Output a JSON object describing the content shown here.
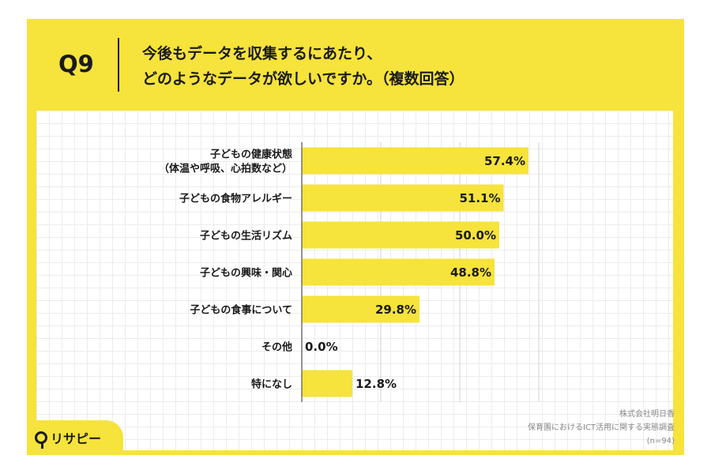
{
  "header": {
    "question": "Q9",
    "title_line1": "今後もデータを収集するにあたり、",
    "title_line2": "どのようなデータが欲しいですか。（複数回答）"
  },
  "chart_data": {
    "type": "bar",
    "orientation": "horizontal",
    "categories": [
      [
        "子どもの健康状態",
        "（体温や呼吸、心拍数など）"
      ],
      [
        "子どもの食物アレルギー"
      ],
      [
        "子どもの生活リズム"
      ],
      [
        "子どもの興味・関心"
      ],
      [
        "子どもの食事について"
      ],
      [
        "その他"
      ],
      [
        "特になし"
      ]
    ],
    "values": [
      57.4,
      51.1,
      50.0,
      48.8,
      29.8,
      0.0,
      12.8
    ],
    "value_labels": [
      "57.4%",
      "51.1%",
      "50.0%",
      "48.8%",
      "29.8%",
      "0.0%",
      "12.8%"
    ],
    "xlim": [
      0,
      100
    ],
    "grid": true,
    "bar_color": "#f6e33b"
  },
  "footer": {
    "company": "株式会社明日香",
    "survey": "保育園におけるICT活用に関する実態調査",
    "n": "(n=94)"
  },
  "logo": {
    "text": "リサピー"
  },
  "colors": {
    "accent": "#f6e33b",
    "text": "#1a1a1a"
  }
}
